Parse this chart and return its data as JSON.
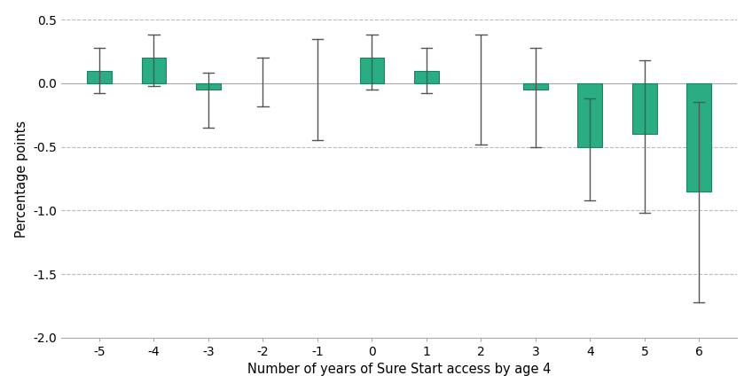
{
  "categories": [
    -5,
    -4,
    -3,
    -2,
    -1,
    0,
    1,
    2,
    3,
    4,
    5,
    6
  ],
  "bar_values": [
    0.1,
    0.2,
    -0.05,
    null,
    null,
    0.2,
    0.1,
    null,
    -0.05,
    -0.5,
    -0.4,
    -0.85
  ],
  "ci_lower": [
    -0.08,
    -0.02,
    -0.35,
    -0.18,
    -0.45,
    -0.05,
    -0.08,
    -0.48,
    -0.5,
    -0.92,
    -1.02,
    -1.72
  ],
  "ci_upper": [
    0.28,
    0.38,
    0.08,
    0.2,
    0.35,
    0.38,
    0.28,
    0.38,
    0.28,
    -0.12,
    0.18,
    -0.15
  ],
  "bar_color": "#2aad82",
  "bar_edge_color": "#1e8060",
  "error_color": "#555555",
  "ylabel": "Percentage points",
  "xlabel": "Number of years of Sure Start access by age 4",
  "ylim": [
    -2.0,
    0.5
  ],
  "yticks": [
    0.5,
    0.0,
    -0.5,
    -1.0,
    -1.5,
    -2.0
  ],
  "background_color": "#ffffff",
  "grid_color": "#bbbbbb",
  "bar_width": 0.45
}
